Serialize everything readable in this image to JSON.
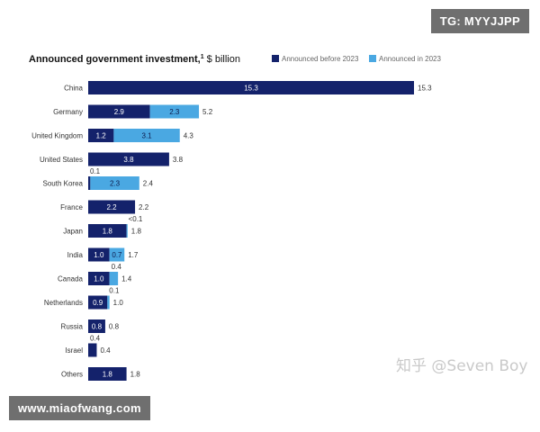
{
  "overlays": {
    "top_badge": "TG: MYYJJPP",
    "bottom_badge": "www.miaofwang.com",
    "watermark": "知乎 @Seven Boy"
  },
  "colors": {
    "before": "#14226b",
    "during": "#4aa8e2",
    "label_text": "#333333"
  },
  "chart_data": {
    "type": "bar",
    "orientation": "horizontal",
    "stacked": true,
    "title": "Announced government investment,",
    "title_superscript": "1",
    "title_unit": "$ billion",
    "legend_position": "top-right",
    "series": [
      {
        "name": "Announced before 2023",
        "color": "#14226b",
        "values": [
          15.3,
          2.9,
          1.2,
          3.8,
          0.1,
          2.2,
          1.8,
          1.0,
          1.0,
          0.9,
          0.8,
          0.4,
          1.8
        ],
        "labels": [
          "15.3",
          "2.9",
          "1.2",
          "3.8",
          "0.1",
          "2.2",
          "1.8",
          "1.0",
          "1.0",
          "0.9",
          "0.8",
          "0.4",
          "1.8"
        ]
      },
      {
        "name": "Announced in 2023",
        "color": "#4aa8e2",
        "values": [
          0,
          2.3,
          3.1,
          0,
          2.3,
          0,
          0.05,
          0.7,
          0.4,
          0.1,
          0,
          0,
          0
        ],
        "labels": [
          "",
          "2.3",
          "3.1",
          "",
          "2.3",
          "",
          "<0.1",
          "0.7",
          "0.4",
          "0.1",
          "",
          "",
          ""
        ]
      }
    ],
    "categories": [
      "China",
      "Germany",
      "United Kingdom",
      "United States",
      "South Korea",
      "France",
      "Japan",
      "India",
      "Canada",
      "Netherlands",
      "Russia",
      "Israel",
      "Others"
    ],
    "totals": [
      "15.3",
      "5.2",
      "4.3",
      "3.8",
      "2.4",
      "2.2",
      "1.8",
      "1.7",
      "1.4",
      "1.0",
      "0.8",
      "0.4",
      "1.8"
    ],
    "xlim": [
      0,
      15.3
    ]
  }
}
